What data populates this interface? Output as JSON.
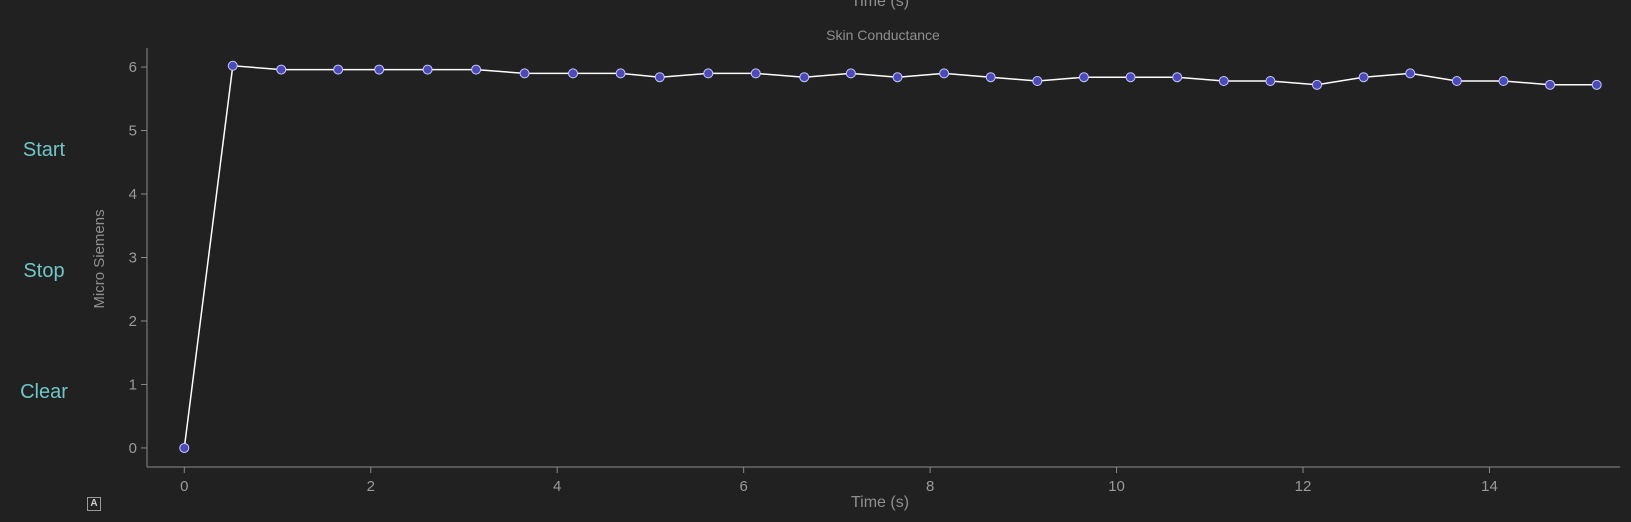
{
  "buttons": {
    "start": "Start",
    "stop": "Stop",
    "clear": "Clear",
    "auto_range": "A"
  },
  "top_clipped_label": "Time (s)",
  "colors": {
    "background": "#212121",
    "axis": "#8a8a8a",
    "line": "#ffffff",
    "marker_fill": "#4a4ab8",
    "marker_stroke": "#c8c8ff",
    "button_text": "#6fc6c6"
  },
  "chart_data": {
    "type": "line",
    "title": "Skin Conductance",
    "xlabel": "Time (s)",
    "ylabel": "Micro Siemens",
    "xlim": [
      -0.4,
      15.4
    ],
    "ylim": [
      -0.3,
      6.3
    ],
    "xticks": [
      0,
      2,
      4,
      6,
      8,
      10,
      12,
      14
    ],
    "yticks": [
      0,
      1,
      2,
      3,
      4,
      5,
      6
    ],
    "grid": false,
    "x": [
      0,
      0.52,
      1.04,
      1.65,
      2.09,
      2.61,
      3.13,
      3.65,
      4.17,
      4.68,
      5.1,
      5.62,
      6.13,
      6.65,
      7.15,
      7.65,
      8.15,
      8.65,
      9.15,
      9.65,
      10.15,
      10.65,
      11.15,
      11.65,
      12.15,
      12.65,
      13.15,
      13.65,
      14.15,
      14.65,
      15.15
    ],
    "series": [
      {
        "values": [
          0,
          6.02,
          5.96,
          5.96,
          5.96,
          5.96,
          5.96,
          5.9,
          5.9,
          5.9,
          5.84,
          5.9,
          5.9,
          5.84,
          5.9,
          5.84,
          5.9,
          5.84,
          5.78,
          5.84,
          5.84,
          5.84,
          5.78,
          5.78,
          5.72,
          5.84,
          5.9,
          5.78,
          5.78,
          5.72,
          5.72
        ]
      }
    ]
  }
}
